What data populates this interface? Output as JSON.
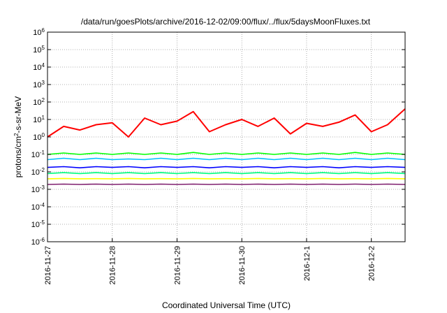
{
  "chart_data": {
    "type": "line",
    "title": "/data/run/goesPlots/archive/2016-12-02/09:00/flux/../flux/5daysMoonFluxes.txt",
    "xlabel": "Coordinated Universal Time (UTC)",
    "ylabel": "protons/cm²-s-sr-MeV",
    "yscale": "log",
    "ylim": [
      1e-06,
      1000000.0
    ],
    "xlim": [
      "2016-11-27 00:00",
      "2016-12-02 13:30"
    ],
    "grid": true,
    "x_tick_labels": [
      "2016-11-27",
      "2016-11-28",
      "2016-11-29",
      "2016-11-30",
      "2016-12-1",
      "2016-12-2"
    ],
    "y_ticks": [
      {
        "base": "10",
        "exp": "-6"
      },
      {
        "base": "10",
        "exp": "-5"
      },
      {
        "base": "10",
        "exp": "-4"
      },
      {
        "base": "10",
        "exp": "-3"
      },
      {
        "base": "10",
        "exp": "-2"
      },
      {
        "base": "10",
        "exp": "-1"
      },
      {
        "base": "10",
        "exp": "0"
      },
      {
        "base": "10",
        "exp": "1"
      },
      {
        "base": "10",
        "exp": "2"
      },
      {
        "base": "10",
        "exp": "3"
      },
      {
        "base": "10",
        "exp": "4"
      },
      {
        "base": "10",
        "exp": "5"
      },
      {
        "base": "10",
        "exp": "6"
      }
    ],
    "x_hours": [
      0,
      6,
      12,
      18,
      24,
      30,
      36,
      42,
      48,
      54,
      60,
      66,
      72,
      78,
      84,
      90,
      96,
      102,
      108,
      114,
      120,
      126,
      132.5
    ],
    "series": [
      {
        "color": "#ff0000",
        "values": [
          1.0,
          4.0,
          2.5,
          5.0,
          6.5,
          1.0,
          12.0,
          5.0,
          8.0,
          28.0,
          2.0,
          5.0,
          10.0,
          4.0,
          12.0,
          1.5,
          6.0,
          4.0,
          7.0,
          18.0,
          2.0,
          5.0,
          40.0
        ]
      },
      {
        "color": "#00ff00",
        "values": [
          0.1,
          0.12,
          0.1,
          0.12,
          0.1,
          0.12,
          0.1,
          0.12,
          0.1,
          0.13,
          0.1,
          0.12,
          0.1,
          0.12,
          0.1,
          0.12,
          0.1,
          0.12,
          0.1,
          0.13,
          0.1,
          0.12,
          0.1
        ]
      },
      {
        "color": "#00c0ff",
        "values": [
          0.05,
          0.06,
          0.05,
          0.06,
          0.05,
          0.055,
          0.05,
          0.06,
          0.05,
          0.06,
          0.05,
          0.06,
          0.05,
          0.06,
          0.05,
          0.06,
          0.05,
          0.06,
          0.05,
          0.06,
          0.05,
          0.06,
          0.05
        ]
      },
      {
        "color": "#0000ff",
        "values": [
          0.018,
          0.02,
          0.017,
          0.02,
          0.018,
          0.02,
          0.017,
          0.02,
          0.018,
          0.02,
          0.017,
          0.02,
          0.018,
          0.02,
          0.017,
          0.02,
          0.018,
          0.02,
          0.017,
          0.02,
          0.018,
          0.02,
          0.018
        ]
      },
      {
        "color": "#00ff80",
        "values": [
          0.008,
          0.009,
          0.008,
          0.009,
          0.008,
          0.009,
          0.008,
          0.009,
          0.008,
          0.009,
          0.008,
          0.009,
          0.008,
          0.009,
          0.008,
          0.009,
          0.008,
          0.009,
          0.008,
          0.009,
          0.008,
          0.009,
          0.008
        ]
      },
      {
        "color": "#ffff00",
        "values": [
          0.004,
          0.0042,
          0.004,
          0.0041,
          0.004,
          0.0042,
          0.004,
          0.0041,
          0.004,
          0.0042,
          0.004,
          0.0041,
          0.004,
          0.0042,
          0.004,
          0.0041,
          0.004,
          0.0042,
          0.004,
          0.0041,
          0.004,
          0.0042,
          0.004
        ]
      },
      {
        "color": "#7f1f6f",
        "values": [
          0.0019,
          0.002,
          0.0019,
          0.002,
          0.0019,
          0.002,
          0.0019,
          0.002,
          0.0019,
          0.002,
          0.0019,
          0.002,
          0.0019,
          0.002,
          0.0019,
          0.002,
          0.0019,
          0.002,
          0.0019,
          0.002,
          0.0019,
          0.002,
          0.0019
        ]
      }
    ]
  }
}
